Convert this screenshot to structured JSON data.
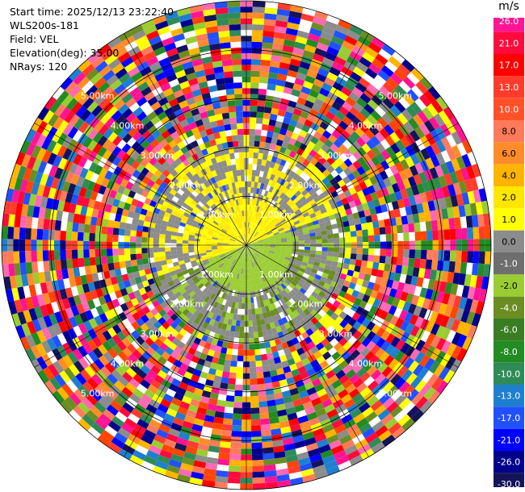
{
  "info": {
    "start_time": "Start time: 2025/12/13 23:22:40",
    "instrument": "WLS200s-181",
    "field": "Field: VEL",
    "elevation": "Elevation(deg): 35.00",
    "nrays": "NRays: 120"
  },
  "chart_data": {
    "type": "heatmap",
    "projection": "polar-ppi",
    "field": "VEL",
    "units": "m/s",
    "n_rays": 120,
    "elevation_deg": 35.0,
    "range_rings_km": [
      1.0,
      2.0,
      3.0,
      4.0,
      5.0
    ],
    "range_ring_labels": [
      "1.00km",
      "2.00km",
      "3.00km",
      "4.00km",
      "5.00km"
    ],
    "max_range_km": 5.0,
    "colorbar": {
      "label": "m/s",
      "ticks": [
        "26.0",
        "21.0",
        "17.0",
        "13.0",
        "10.0",
        "8.0",
        "6.0",
        "4.0",
        "2.0",
        "1.0",
        "0.0",
        "-1.0",
        "-2.0",
        "-4.0",
        "-6.0",
        "-8.0",
        "-10.0",
        "-13.0",
        "-17.0",
        "-21.0",
        "-26.0",
        "-30.0"
      ],
      "colors": [
        "#ff1493",
        "#ff0a3c",
        "#ff0000",
        "#ff3c2c",
        "#ff5028",
        "#ff7a5a",
        "#ff8c28",
        "#ffb400",
        "#ffe600",
        "#ffff00",
        "#8c8c8c",
        "#6e6e6e",
        "#9acd32",
        "#6b8e23",
        "#3a7d22",
        "#228b22",
        "#2e8b57",
        "#1e7fd0",
        "#2050ff",
        "#0000ff",
        "#00008b",
        "#14145a",
        "#000000"
      ]
    }
  }
}
